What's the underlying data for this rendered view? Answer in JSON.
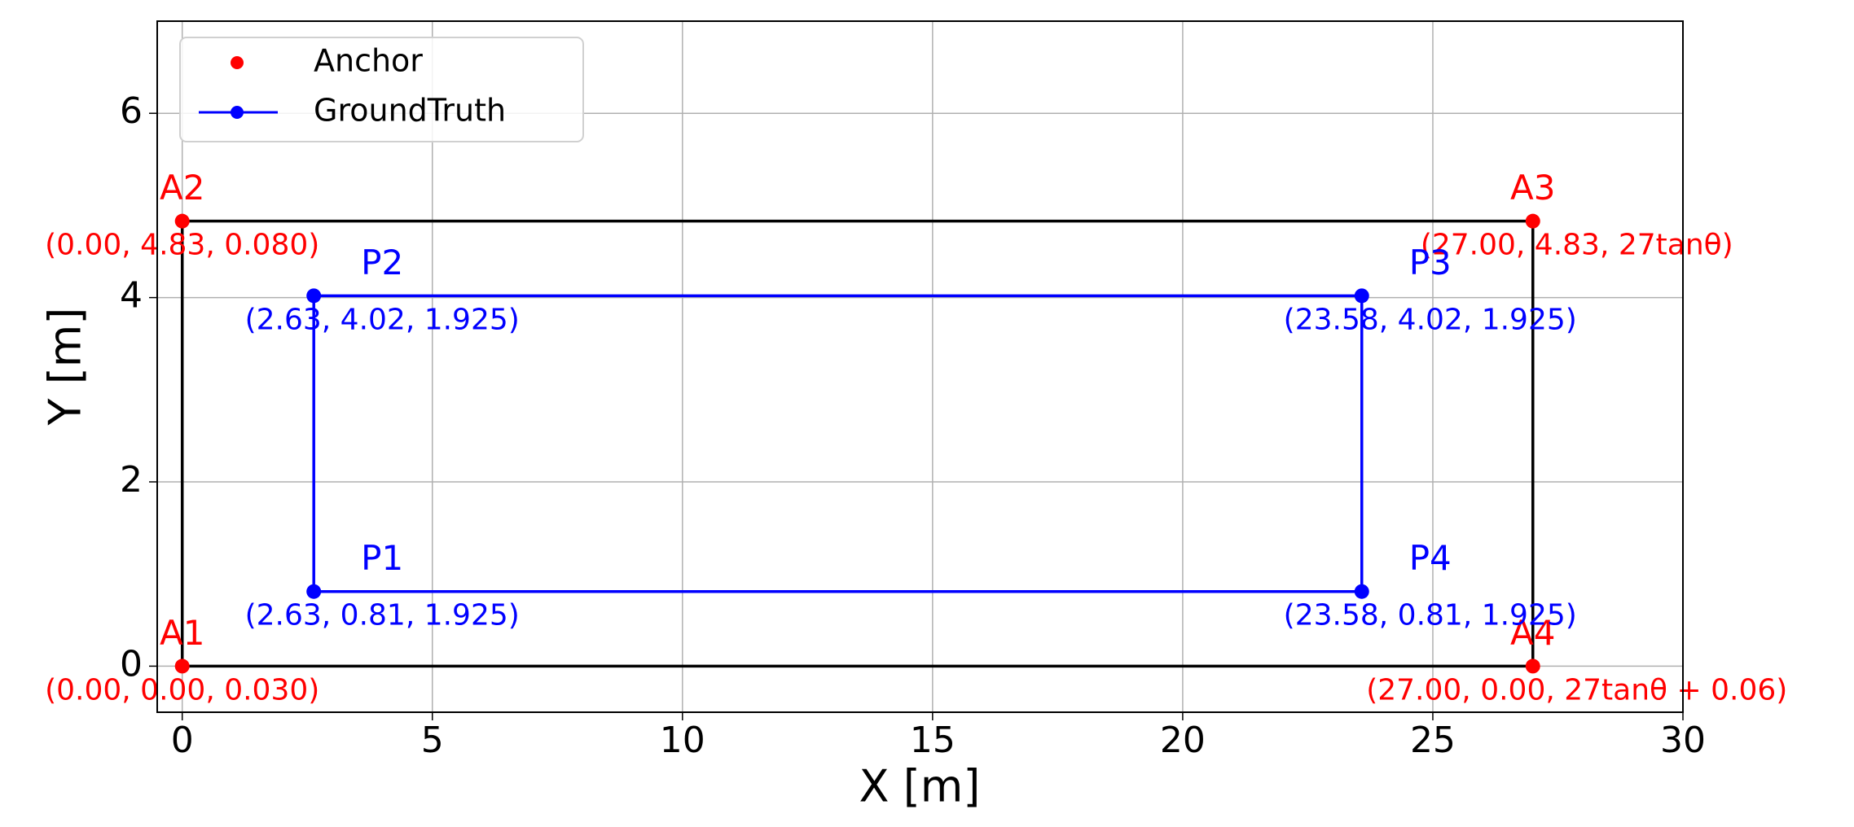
{
  "chart_data": {
    "type": "line",
    "xlabel": "X [m]",
    "ylabel": "Y [m]",
    "xlim": [
      -0.5,
      30
    ],
    "ylim": [
      -0.5,
      7
    ],
    "xticks": [
      0,
      5,
      10,
      15,
      20,
      25,
      30
    ],
    "yticks": [
      0,
      2,
      4,
      6
    ],
    "grid": true,
    "legend": "upper left",
    "series": [
      {
        "name": "Anchor",
        "color": "#ff0000",
        "mode": "markers",
        "x": [
          0,
          0,
          27,
          27
        ],
        "y": [
          0,
          4.83,
          4.83,
          0
        ],
        "point_labels": [
          "A1",
          "A2",
          "A3",
          "A4"
        ],
        "coord_labels": [
          "(0.00, 0.00, 0.030)",
          "(0.00, 4.83, 0.080)",
          "(27.00, 4.83, 27tanθ)",
          "(27.00, 0.00, 27tanθ + 0.06)"
        ]
      },
      {
        "name": "GroundTruth",
        "color": "#0000ff",
        "mode": "lines+markers",
        "closed": true,
        "x": [
          2.63,
          2.63,
          23.58,
          23.58
        ],
        "y": [
          0.81,
          4.02,
          4.02,
          0.81
        ],
        "point_labels": [
          "P1",
          "P2",
          "P3",
          "P4"
        ],
        "coord_labels": [
          "(2.63, 0.81, 1.925)",
          "(2.63, 4.02, 1.925)",
          "(23.58, 4.02, 1.925)",
          "(23.58, 0.81, 1.925)"
        ]
      },
      {
        "color": "#000000",
        "mode": "lines",
        "closed": true,
        "x": [
          0,
          0,
          27,
          27
        ],
        "y": [
          0,
          4.83,
          4.83,
          0
        ]
      }
    ]
  }
}
